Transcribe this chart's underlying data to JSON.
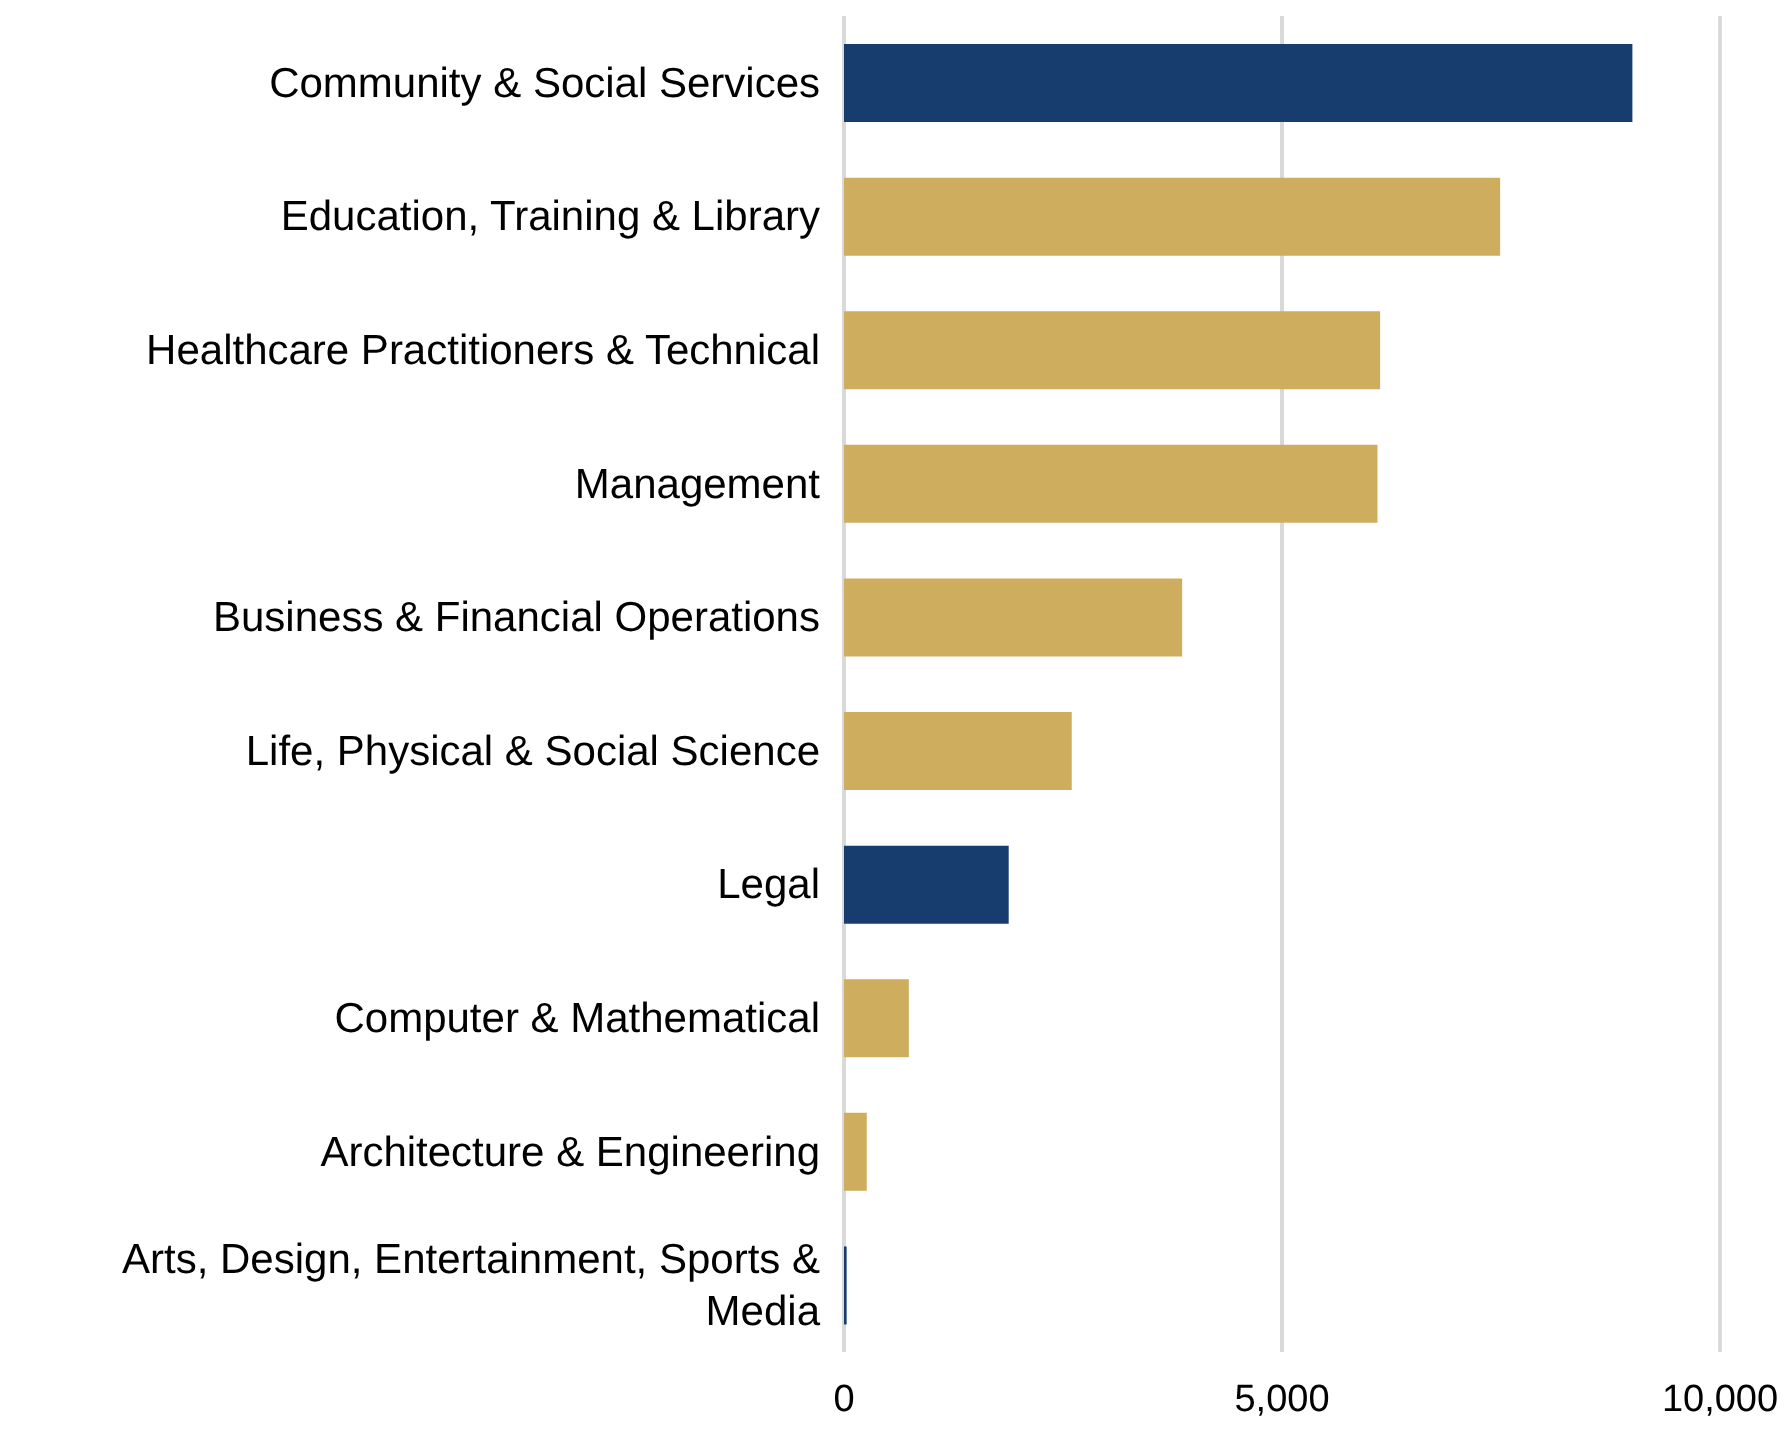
{
  "chart_data": {
    "type": "bar",
    "orientation": "horizontal",
    "categories": [
      "Community & Social Services",
      "Education, Training & Library",
      "Healthcare Practitioners & Technical",
      "Management",
      "Business & Financial Operations",
      "Life, Physical & Social Science",
      "Legal",
      "Computer & Mathematical",
      "Architecture & Engineering",
      "Arts, Design, Entertainment, Sports & Media"
    ],
    "values": [
      9000,
      7490,
      6120,
      6090,
      3860,
      2600,
      1880,
      740,
      260,
      30
    ],
    "colors": [
      "#173d6f",
      "#cfad5f",
      "#cfad5f",
      "#cfad5f",
      "#cfad5f",
      "#cfad5f",
      "#173d6f",
      "#cfad5f",
      "#cfad5f",
      "#173d6f"
    ],
    "xlim": [
      0,
      10000
    ],
    "xticks": [
      {
        "value": 0,
        "label": "0"
      },
      {
        "value": 5000,
        "label": "5,000"
      },
      {
        "value": 10000,
        "label": "10,000"
      }
    ],
    "grid": "x"
  }
}
